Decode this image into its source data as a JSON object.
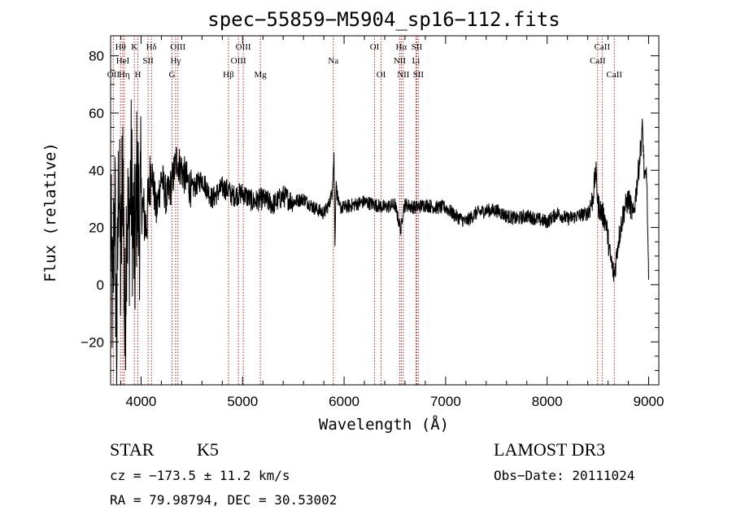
{
  "chart_data": {
    "type": "line",
    "title": "spec−55859−M5904_sp16−112.fits",
    "xlabel": "Wavelength (Å)",
    "ylabel": "Flux (relative)",
    "xlim": [
      3700,
      9100
    ],
    "ylim": [
      -35,
      87
    ],
    "x_ticks": [
      4000,
      5000,
      6000,
      7000,
      8000,
      9000
    ],
    "x_tick_labels": [
      "4000",
      "5000",
      "6000",
      "7000",
      "8000",
      "9000"
    ],
    "y_ticks": [
      -20,
      0,
      20,
      40,
      60,
      80
    ],
    "y_tick_labels": [
      "−20",
      "0",
      "20",
      "40",
      "60",
      "80"
    ],
    "line_color": "#000000",
    "marker_color": "#b22222",
    "series": [
      {
        "name": "flux",
        "x": [
          3700,
          3720,
          3740,
          3760,
          3780,
          3800,
          3820,
          3840,
          3860,
          3880,
          3900,
          3920,
          3940,
          3960,
          3980,
          4000,
          4050,
          4100,
          4150,
          4200,
          4250,
          4300,
          4350,
          4400,
          4500,
          4600,
          4700,
          4800,
          4860,
          4900,
          5000,
          5100,
          5200,
          5300,
          5400,
          5500,
          5600,
          5700,
          5800,
          5850,
          5880,
          5900,
          5910,
          5920,
          5950,
          6000,
          6100,
          6200,
          6300,
          6400,
          6500,
          6560,
          6580,
          6600,
          6700,
          6800,
          6900,
          7000,
          7100,
          7200,
          7300,
          7400,
          7500,
          7600,
          7700,
          7800,
          7900,
          8000,
          8100,
          8200,
          8300,
          8400,
          8450,
          8480,
          8500,
          8540,
          8580,
          8620,
          8660,
          8700,
          8750,
          8800,
          8850,
          8900,
          8940,
          8960,
          8980,
          9000
        ],
        "y": [
          20,
          -10,
          35,
          -25,
          45,
          0,
          50,
          -20,
          30,
          15,
          40,
          20,
          10,
          38,
          22,
          30,
          20,
          42,
          25,
          38,
          30,
          35,
          44,
          40,
          33,
          37,
          30,
          34,
          33,
          31,
          32,
          29,
          30,
          28,
          31,
          29,
          30,
          27,
          25,
          28,
          32,
          45,
          15,
          35,
          27,
          27,
          28,
          29,
          28,
          27,
          28,
          19,
          26,
          28,
          27,
          28,
          27,
          27,
          24,
          22,
          25,
          26,
          26,
          24,
          23,
          24,
          23,
          22,
          25,
          23,
          24,
          25,
          30,
          40,
          28,
          25,
          22,
          10,
          3,
          15,
          25,
          30,
          24,
          40,
          55,
          35,
          40,
          0
        ]
      }
    ],
    "lines": [
      {
        "label": "OII",
        "wl": 3727,
        "row": 3
      },
      {
        "label": "Hθ",
        "wl": 3798,
        "row": 1
      },
      {
        "label": "HeI",
        "wl": 3820,
        "row": 2
      },
      {
        "label": "Hη",
        "wl": 3835,
        "row": 3
      },
      {
        "label": "K",
        "wl": 3934,
        "row": 1
      },
      {
        "label": "SII",
        "wl": 4069,
        "row": 2
      },
      {
        "label": "H",
        "wl": 3968,
        "row": 3
      },
      {
        "label": "Hδ",
        "wl": 4102,
        "row": 1
      },
      {
        "label": "OIII",
        "wl": 4363,
        "row": 1
      },
      {
        "label": "Hγ",
        "wl": 4340,
        "row": 2
      },
      {
        "label": "G",
        "wl": 4305,
        "row": 3
      },
      {
        "label": "Hβ",
        "wl": 4861,
        "row": 3
      },
      {
        "label": "OIII",
        "wl": 5007,
        "row": 1
      },
      {
        "label": "OIII",
        "wl": 4959,
        "row": 2
      },
      {
        "label": "Mg",
        "wl": 5175,
        "row": 3
      },
      {
        "label": "Na",
        "wl": 5894,
        "row": 2
      },
      {
        "label": "OI",
        "wl": 6300,
        "row": 1
      },
      {
        "label": "OI",
        "wl": 6364,
        "row": 3
      },
      {
        "label": "Hα",
        "wl": 6563,
        "row": 1
      },
      {
        "label": "NII",
        "wl": 6548,
        "row": 2
      },
      {
        "label": "NII",
        "wl": 6583,
        "row": 3
      },
      {
        "label": "SII",
        "wl": 6716,
        "row": 1
      },
      {
        "label": "Li",
        "wl": 6708,
        "row": 2
      },
      {
        "label": "SII",
        "wl": 6731,
        "row": 3
      },
      {
        "label": "CaII",
        "wl": 8542,
        "row": 1
      },
      {
        "label": "CaII",
        "wl": 8498,
        "row": 2
      },
      {
        "label": "CaII",
        "wl": 8662,
        "row": 3
      }
    ]
  },
  "info": {
    "class": "STAR",
    "subclass": "K5",
    "survey": "LAMOST DR3",
    "cz": "cz = −173.5 ± 11.2 km/s",
    "obs_date": "Obs−Date: 20111024",
    "coords": "RA =  79.98794, DEC =  30.53002"
  }
}
